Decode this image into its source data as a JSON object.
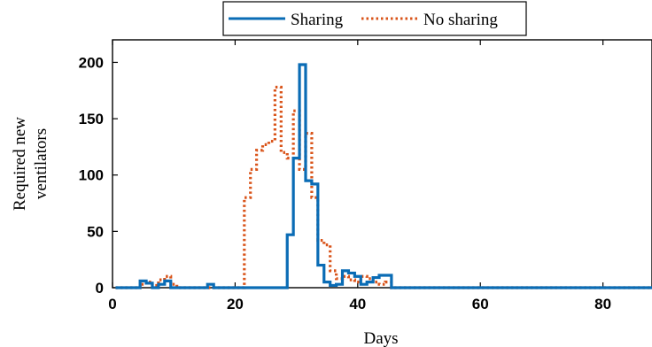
{
  "chart_data": {
    "type": "line",
    "title": "",
    "xlabel": "Days",
    "ylabel_lines": [
      "Required new",
      "ventilators"
    ],
    "xlim": [
      0,
      88
    ],
    "ylim": [
      0,
      220
    ],
    "xticks": [
      0,
      20,
      40,
      60,
      80
    ],
    "yticks": [
      0,
      50,
      100,
      150,
      200
    ],
    "grid": false,
    "legend": {
      "placement": "top-center-outside",
      "orientation": "horizontal"
    },
    "colors": {
      "sharing": "#0A6CB5",
      "no_sharing": "#D9541A"
    },
    "series": [
      {
        "name": "Sharing",
        "style": "solid-step",
        "x": [
          1,
          2,
          3,
          4,
          5,
          6,
          7,
          8,
          9,
          10,
          11,
          12,
          13,
          14,
          15,
          16,
          17,
          18,
          19,
          20,
          21,
          22,
          23,
          24,
          25,
          26,
          27,
          28,
          29,
          30,
          31,
          32,
          33,
          34,
          35,
          36,
          37,
          38,
          39,
          40,
          41,
          42,
          43,
          44,
          45,
          46,
          47,
          48,
          49,
          50,
          51,
          52,
          53,
          54,
          55,
          56,
          57,
          58,
          59,
          60,
          61,
          62,
          63,
          64,
          65,
          66,
          67,
          68,
          69,
          70,
          71,
          72,
          73,
          74,
          75,
          76,
          77,
          78,
          79,
          80,
          81,
          82,
          83,
          84,
          85,
          86,
          87,
          88
        ],
        "values": [
          0,
          0,
          0,
          0,
          6,
          4,
          0,
          3,
          6,
          0,
          0,
          0,
          0,
          0,
          0,
          3,
          0,
          0,
          0,
          0,
          0,
          0,
          0,
          0,
          0,
          0,
          0,
          0,
          47,
          115,
          198,
          95,
          92,
          20,
          5,
          2,
          3,
          15,
          13,
          10,
          3,
          5,
          9,
          11,
          11,
          0,
          0,
          0,
          0,
          0,
          0,
          0,
          0,
          0,
          0,
          0,
          0,
          0,
          0,
          0,
          0,
          0,
          0,
          0,
          0,
          0,
          0,
          0,
          0,
          0,
          0,
          0,
          0,
          0,
          0,
          0,
          0,
          0,
          0,
          0,
          0,
          0,
          0,
          0,
          0,
          0,
          0,
          0
        ]
      },
      {
        "name": "No sharing",
        "style": "dotted-step",
        "x": [
          1,
          2,
          3,
          4,
          5,
          6,
          7,
          8,
          9,
          10,
          11,
          12,
          13,
          14,
          15,
          16,
          17,
          18,
          19,
          20,
          21,
          22,
          23,
          24,
          25,
          26,
          27,
          28,
          29,
          30,
          31,
          32,
          33,
          34,
          35,
          36,
          37,
          38,
          39,
          40,
          41,
          42,
          43,
          44,
          45,
          46,
          47,
          48,
          49,
          50,
          51,
          52,
          53,
          54,
          55,
          56,
          57,
          58,
          59,
          60,
          61,
          62,
          63,
          64,
          65,
          66,
          67,
          68,
          69,
          70,
          71,
          72,
          73,
          74,
          75,
          76,
          77,
          78,
          79,
          80,
          81,
          82,
          83,
          84,
          85,
          86,
          87,
          88
        ],
        "values": [
          0,
          0,
          0,
          0,
          3,
          5,
          2,
          7,
          10,
          3,
          0,
          0,
          0,
          0,
          0,
          0,
          0,
          0,
          0,
          0,
          0,
          80,
          105,
          122,
          127,
          130,
          178,
          120,
          115,
          157,
          105,
          137,
          80,
          42,
          38,
          15,
          8,
          10,
          7,
          5,
          10,
          8,
          5,
          3,
          5,
          0,
          0,
          0,
          0,
          0,
          0,
          0,
          0,
          0,
          0,
          0,
          0,
          0,
          0,
          0,
          0,
          0,
          0,
          0,
          0,
          0,
          0,
          0,
          0,
          0,
          0,
          0,
          0,
          0,
          0,
          0,
          0,
          0,
          0,
          0,
          0,
          0,
          0,
          0,
          0,
          0,
          0,
          0
        ]
      }
    ]
  }
}
